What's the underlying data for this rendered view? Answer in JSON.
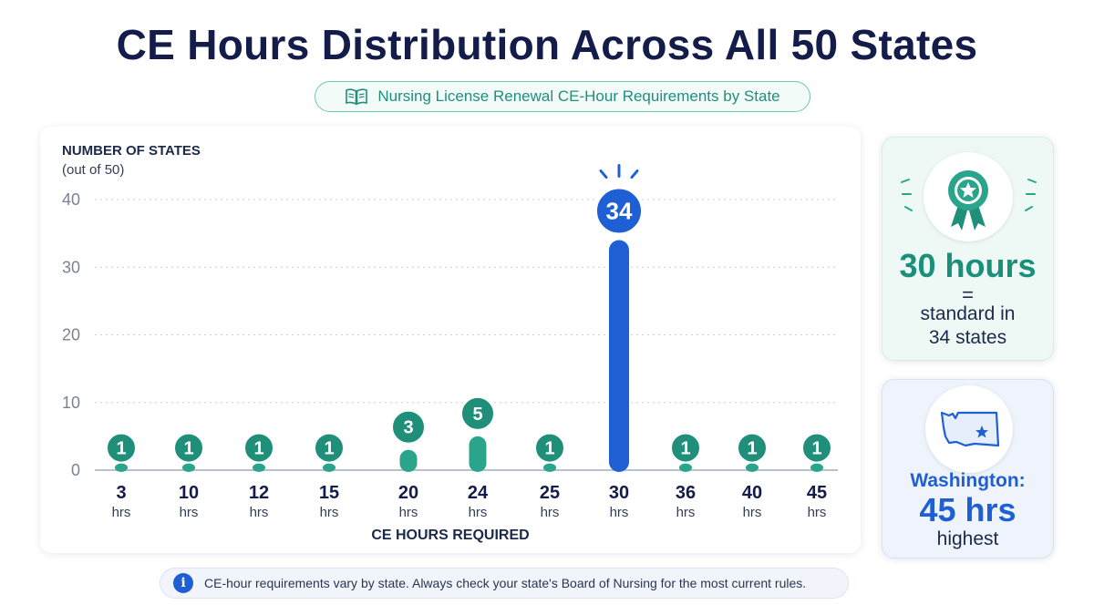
{
  "title": "CE Hours Distribution Across All 50 States",
  "subtitle": "Nursing License Renewal CE-Hour Requirements by State",
  "colors": {
    "teal": "#2aa58b",
    "teal_dark": "#1f8f7a",
    "blue": "#1e5fd3",
    "navy": "#141c4a"
  },
  "chart_data": {
    "type": "bar",
    "ylabel": "NUMBER OF STATES",
    "ylabel_sub": "(out of 50)",
    "xlabel": "CE HOURS REQUIRED",
    "ylim": [
      0,
      40
    ],
    "yticks": [
      0,
      10,
      20,
      30,
      40
    ],
    "grid": true,
    "categories": [
      "3",
      "10",
      "12",
      "15",
      "20",
      "24",
      "25",
      "30",
      "36",
      "40",
      "45"
    ],
    "category_unit": "hrs",
    "values": [
      1,
      1,
      1,
      1,
      3,
      5,
      1,
      34,
      1,
      1,
      1
    ],
    "highlight_category": "30"
  },
  "cards": {
    "standard": {
      "icon": "award-ribbon-icon",
      "hours": "30 hours",
      "equals": "=",
      "line1": "standard in",
      "line2": "34 states"
    },
    "highest": {
      "icon": "washington-state-map-icon",
      "state": "Washington:",
      "hours": "45 hrs",
      "label": "highest"
    }
  },
  "note": {
    "icon": "info-icon",
    "text": "CE-hour requirements vary by state. Always check your state's Board of Nursing for the most current rules."
  }
}
